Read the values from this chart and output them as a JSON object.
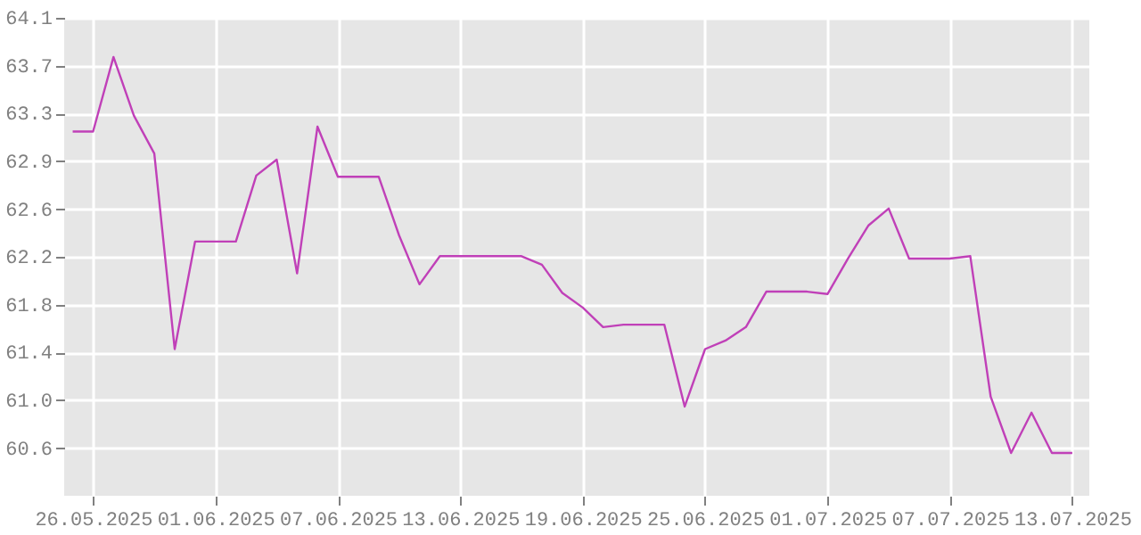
{
  "chart_data": {
    "type": "line",
    "x": [
      "2025-05-25",
      "2025-05-26",
      "2025-05-27",
      "2025-05-28",
      "2025-05-29",
      "2025-05-30",
      "2025-05-31",
      "2025-06-01",
      "2025-06-02",
      "2025-06-03",
      "2025-06-04",
      "2025-06-05",
      "2025-06-06",
      "2025-06-07",
      "2025-06-08",
      "2025-06-09",
      "2025-06-10",
      "2025-06-11",
      "2025-06-12",
      "2025-06-13",
      "2025-06-14",
      "2025-06-15",
      "2025-06-16",
      "2025-06-17",
      "2025-06-18",
      "2025-06-19",
      "2025-06-20",
      "2025-06-21",
      "2025-06-22",
      "2025-06-23",
      "2025-06-24",
      "2025-06-25",
      "2025-06-26",
      "2025-06-27",
      "2025-06-28",
      "2025-06-29",
      "2025-06-30",
      "2025-07-01",
      "2025-07-02",
      "2025-07-03",
      "2025-07-04",
      "2025-07-05",
      "2025-07-06",
      "2025-07-07",
      "2025-07-08",
      "2025-07-09",
      "2025-07-10",
      "2025-07-11",
      "2025-07-12",
      "2025-07-13"
    ],
    "series": [
      {
        "color": "#c040b8",
        "values": [
          63.19,
          63.19,
          63.8,
          63.32,
          63.01,
          61.41,
          62.29,
          62.29,
          62.29,
          62.83,
          62.96,
          62.03,
          63.23,
          62.82,
          62.82,
          62.82,
          62.34,
          61.94,
          62.17,
          62.17,
          62.17,
          62.17,
          62.17,
          62.1,
          61.87,
          61.75,
          61.59,
          61.61,
          61.61,
          61.61,
          60.94,
          61.41,
          61.48,
          61.59,
          61.88,
          61.88,
          61.88,
          61.86,
          62.15,
          62.42,
          62.56,
          62.15,
          62.15,
          62.15,
          62.17,
          61.02,
          60.56,
          60.89,
          60.56,
          60.56
        ]
      }
    ],
    "xlim": [
      "2025-05-24T14:00",
      "2025-07-13T20:00"
    ],
    "xticks": [
      {
        "value": "2025-05-26",
        "label": "26.05.2025"
      },
      {
        "value": "2025-06-01",
        "label": "01.06.2025"
      },
      {
        "value": "2025-06-07",
        "label": "07.06.2025"
      },
      {
        "value": "2025-06-13",
        "label": "13.06.2025"
      },
      {
        "value": "2025-06-19",
        "label": "19.06.2025"
      },
      {
        "value": "2025-06-25",
        "label": "25.06.2025"
      },
      {
        "value": "2025-07-01",
        "label": "01.07.2025"
      },
      {
        "value": "2025-07-07",
        "label": "07.07.2025"
      },
      {
        "value": "2025-07-13",
        "label": "13.07.2025"
      }
    ],
    "ylim": [
      60.21,
      64.12
    ],
    "yticks": [
      60.6,
      {
        "value": 60.991,
        "label": "61.0"
      },
      {
        "value": 61.382,
        "label": "61.4"
      },
      {
        "value": 61.773,
        "label": "61.8"
      },
      {
        "value": 62.164,
        "label": "62.2"
      },
      {
        "value": 62.555,
        "label": "62.6"
      },
      {
        "value": 62.946,
        "label": "62.9"
      },
      {
        "value": 63.337,
        "label": "63.3"
      },
      {
        "value": 63.728,
        "label": "63.7"
      },
      {
        "value": 64.119,
        "label": "64.1"
      }
    ],
    "grid": true
  }
}
